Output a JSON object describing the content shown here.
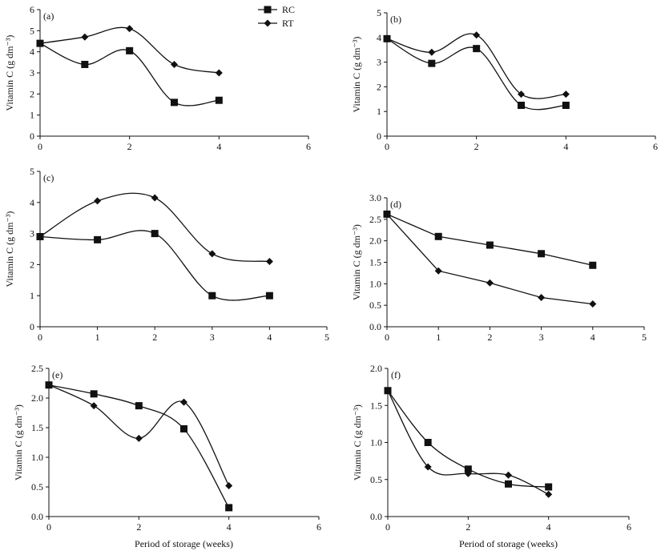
{
  "legend": {
    "entries": [
      {
        "name": "RC",
        "marker": "square"
      },
      {
        "name": "RT",
        "marker": "diamond"
      }
    ]
  },
  "chart_data": [
    {
      "type": "line",
      "panel_label": "(a)",
      "ylabel": "Vitamin C (g dm⁻³)",
      "xlabel": "",
      "xlim": [
        0,
        6
      ],
      "ylim": [
        0,
        6
      ],
      "xticks": [
        "0",
        "2",
        "4",
        "6"
      ],
      "yticks": [
        "0",
        "1",
        "2",
        "3",
        "4",
        "5",
        "6"
      ],
      "series": [
        {
          "name": "RC",
          "marker": "square",
          "x": [
            0,
            1,
            2,
            3,
            4
          ],
          "y": [
            4.4,
            3.4,
            4.05,
            1.6,
            1.7
          ]
        },
        {
          "name": "RT",
          "marker": "diamond",
          "x": [
            0,
            1,
            2,
            3,
            4
          ],
          "y": [
            4.4,
            4.7,
            5.1,
            3.4,
            3.0
          ]
        }
      ]
    },
    {
      "type": "line",
      "panel_label": "(b)",
      "ylabel": "Vitamin C (g dm⁻³)",
      "xlabel": "",
      "xlim": [
        0,
        6
      ],
      "ylim": [
        0,
        5
      ],
      "xticks": [
        "0",
        "2",
        "4",
        "6"
      ],
      "yticks": [
        "0",
        "1",
        "2",
        "3",
        "4",
        "5"
      ],
      "series": [
        {
          "name": "RC",
          "marker": "square",
          "x": [
            0,
            1,
            2,
            3,
            4
          ],
          "y": [
            3.95,
            2.95,
            3.55,
            1.25,
            1.25
          ]
        },
        {
          "name": "RT",
          "marker": "diamond",
          "x": [
            0,
            1,
            2,
            3,
            4
          ],
          "y": [
            3.95,
            3.4,
            4.1,
            1.7,
            1.7
          ]
        }
      ]
    },
    {
      "type": "line",
      "panel_label": "(c)",
      "ylabel": "Vitamin C (g dm⁻³)",
      "xlabel": "",
      "xlim": [
        0,
        5
      ],
      "ylim": [
        0,
        5
      ],
      "xticks": [
        "0",
        "1",
        "2",
        "3",
        "4",
        "5"
      ],
      "yticks": [
        "0",
        "1",
        "2",
        "3",
        "4",
        "5"
      ],
      "series": [
        {
          "name": "RC",
          "marker": "square",
          "x": [
            0,
            1,
            2,
            3,
            4
          ],
          "y": [
            2.9,
            2.8,
            3.0,
            1.0,
            1.0
          ]
        },
        {
          "name": "RT",
          "marker": "diamond",
          "x": [
            0,
            1,
            2,
            3,
            4
          ],
          "y": [
            2.9,
            4.05,
            4.15,
            2.35,
            2.1
          ]
        }
      ]
    },
    {
      "type": "line",
      "panel_label": "(d)",
      "ylabel": "Vitamin C (g dm⁻³)",
      "xlabel": "",
      "xlim": [
        0,
        5
      ],
      "ylim": [
        0,
        3.0
      ],
      "xticks": [
        "0",
        "1",
        "2",
        "3",
        "4",
        "5"
      ],
      "yticks": [
        "0.0",
        "0.5",
        "1.0",
        "1.5",
        "2.0",
        "2.5",
        "3.0"
      ],
      "series": [
        {
          "name": "RC",
          "marker": "square",
          "x": [
            0,
            1,
            2,
            3,
            4
          ],
          "y": [
            2.62,
            2.1,
            1.9,
            1.7,
            1.43
          ]
        },
        {
          "name": "RT",
          "marker": "diamond",
          "x": [
            0,
            1,
            2,
            3,
            4
          ],
          "y": [
            2.62,
            1.3,
            1.02,
            0.68,
            0.53
          ]
        }
      ]
    },
    {
      "type": "line",
      "panel_label": "(e)",
      "ylabel": "Vitamin C (g dm⁻³)",
      "xlabel": "Period of storage (weeks)",
      "xlim": [
        0,
        6
      ],
      "ylim": [
        0,
        2.5
      ],
      "xticks": [
        "0",
        "2",
        "4",
        "6"
      ],
      "yticks": [
        "0.0",
        "0.5",
        "1.0",
        "1.5",
        "2.0",
        "2.5"
      ],
      "series": [
        {
          "name": "RC",
          "marker": "square",
          "x": [
            0,
            1,
            2,
            3,
            4
          ],
          "y": [
            2.22,
            2.07,
            1.87,
            1.48,
            0.15
          ]
        },
        {
          "name": "RT",
          "marker": "diamond",
          "x": [
            0,
            1,
            2,
            3,
            4
          ],
          "y": [
            2.22,
            1.87,
            1.32,
            1.93,
            0.52
          ]
        }
      ]
    },
    {
      "type": "line",
      "panel_label": "(f)",
      "ylabel": "Vitamin C (g dm⁻³)",
      "xlabel": "Period of storage (weeks)",
      "xlim": [
        0,
        6
      ],
      "ylim": [
        0,
        2.0
      ],
      "xticks": [
        "0",
        "2",
        "4",
        "6"
      ],
      "yticks": [
        "0.0",
        "0.5",
        "1.0",
        "1.5",
        "2.0"
      ],
      "series": [
        {
          "name": "RC",
          "marker": "square",
          "x": [
            0,
            1,
            2,
            3,
            4
          ],
          "y": [
            1.7,
            1.0,
            0.64,
            0.44,
            0.4
          ]
        },
        {
          "name": "RT",
          "marker": "diamond",
          "x": [
            0,
            1,
            2,
            3,
            4
          ],
          "y": [
            1.7,
            0.67,
            0.58,
            0.56,
            0.3
          ]
        }
      ]
    }
  ]
}
